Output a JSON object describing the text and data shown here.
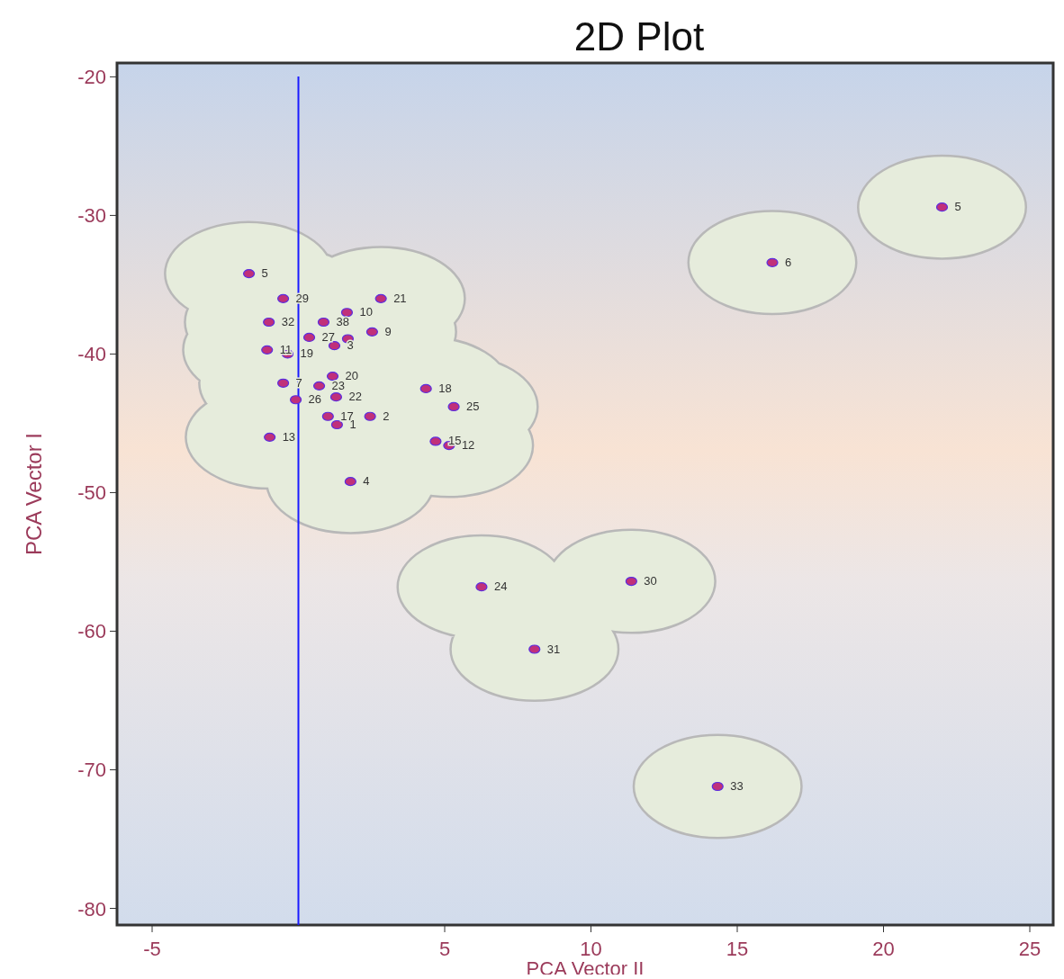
{
  "chart_data": {
    "type": "scatter",
    "title": "2D Plot",
    "xlabel": "PCA Vector II",
    "ylabel": "PCA Vector I",
    "xlim": [
      -6.2,
      25.8
    ],
    "xticks": [
      -5,
      5,
      10,
      15,
      20,
      25
    ],
    "ylim": [
      -81.2,
      -19
    ],
    "yticks": [
      -80,
      -70,
      -60,
      -50,
      -40,
      -30,
      -20
    ],
    "grid": false,
    "marker": "circle",
    "ref_lines": [
      {
        "axis": "x",
        "value": 0,
        "color": "#1a1aff"
      }
    ],
    "series": [
      {
        "color": "#c0307a",
        "x": [
          -1.69,
          -0.52,
          2.82,
          1.66,
          -1.01,
          0.86,
          2.52,
          0.37,
          1.69,
          1.23,
          -1.07,
          -0.37,
          1.17,
          -0.52,
          0.71,
          -0.09,
          1.29,
          4.36,
          5.31,
          1.01,
          2.45,
          1.32,
          -0.98,
          4.69,
          5.15,
          1.78,
          22.0,
          16.2,
          6.26,
          11.38,
          8.07,
          14.33
        ],
        "values": [
          -34.2,
          -36.0,
          -36.0,
          -37.0,
          -37.7,
          -37.7,
          -38.4,
          -38.8,
          -38.9,
          -39.4,
          -39.7,
          -40.0,
          -41.6,
          -42.1,
          -42.3,
          -43.3,
          -43.1,
          -42.5,
          -43.8,
          -44.5,
          -44.5,
          -45.1,
          -46.0,
          -46.3,
          -46.6,
          -49.2,
          -29.4,
          -33.4,
          -56.8,
          -56.4,
          -61.3,
          -71.2
        ]
      }
    ],
    "annotations": [
      {
        "text": "5",
        "x": -1.69,
        "y": -34.2
      },
      {
        "text": "29",
        "x": -0.52,
        "y": -36.0
      },
      {
        "text": "21",
        "x": 2.82,
        "y": -36.0
      },
      {
        "text": "10",
        "x": 1.66,
        "y": -37.0
      },
      {
        "text": "32",
        "x": -1.01,
        "y": -37.7
      },
      {
        "text": "38",
        "x": 0.86,
        "y": -37.7
      },
      {
        "text": "9",
        "x": 2.52,
        "y": -38.4
      },
      {
        "text": "27",
        "x": 0.37,
        "y": -38.8
      },
      {
        "text": "3",
        "x": 1.23,
        "y": -39.4
      },
      {
        "text": "11",
        "x": -1.07,
        "y": -39.7
      },
      {
        "text": "19",
        "x": -0.37,
        "y": -40.0
      },
      {
        "text": "20",
        "x": 1.17,
        "y": -41.6
      },
      {
        "text": "7",
        "x": -0.52,
        "y": -42.1
      },
      {
        "text": "23",
        "x": 0.71,
        "y": -42.3
      },
      {
        "text": "26",
        "x": -0.09,
        "y": -43.3
      },
      {
        "text": "22",
        "x": 1.29,
        "y": -43.1
      },
      {
        "text": "18",
        "x": 4.36,
        "y": -42.5
      },
      {
        "text": "25",
        "x": 5.31,
        "y": -43.8
      },
      {
        "text": "17",
        "x": 1.01,
        "y": -44.5
      },
      {
        "text": "2",
        "x": 2.45,
        "y": -44.5
      },
      {
        "text": "1",
        "x": 1.32,
        "y": -45.1
      },
      {
        "text": "13",
        "x": -0.98,
        "y": -46.0
      },
      {
        "text": "15",
        "x": 4.69,
        "y": -46.3
      },
      {
        "text": "12",
        "x": 5.15,
        "y": -46.6
      },
      {
        "text": "4",
        "x": 1.78,
        "y": -49.2
      },
      {
        "text": "5",
        "x": 22.0,
        "y": -29.4
      },
      {
        "text": "6",
        "x": 16.2,
        "y": -33.4
      },
      {
        "text": "24",
        "x": 6.26,
        "y": -56.8
      },
      {
        "text": "30",
        "x": 11.38,
        "y": -56.4
      },
      {
        "text": "31",
        "x": 8.07,
        "y": -61.3
      },
      {
        "text": "33",
        "x": 14.33,
        "y": -71.2
      }
    ]
  }
}
